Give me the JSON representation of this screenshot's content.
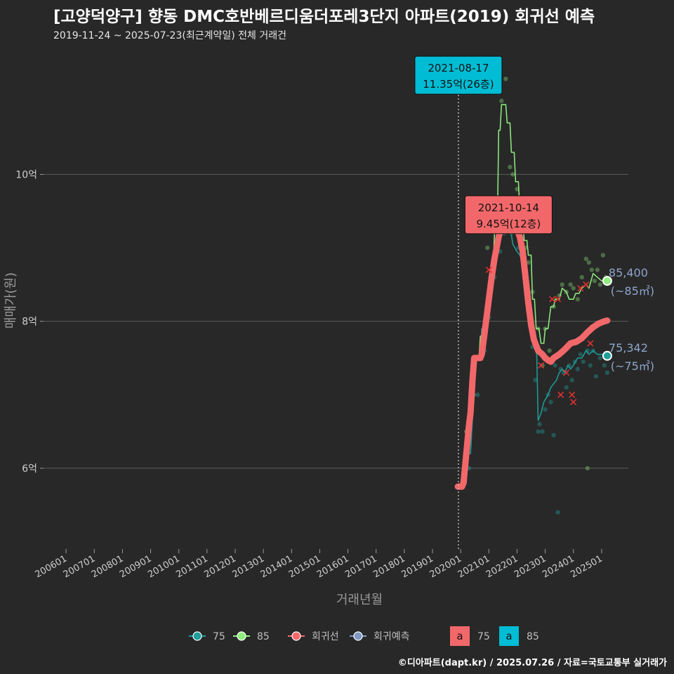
{
  "header": {
    "title": "[고양덕양구] 향동 DMC호반베르디움더포레3단지 아파트(2019) 회귀선 예측",
    "subtitle": "2019-11-24 ~ 2025-07-23(최근계약일) 전체 거래건"
  },
  "caption": "©디아파트(dapt.kr) / 2025.07.26 / 자료=국토교통부 실거래가",
  "chart_data": {
    "type": "line",
    "xlabel": "거래년월",
    "ylabel": "매매가(원)",
    "x_ticks": [
      "200601",
      "200701",
      "200801",
      "200901",
      "201001",
      "201101",
      "201201",
      "201301",
      "201401",
      "201501",
      "201601",
      "201701",
      "201801",
      "201901",
      "202001",
      "202101",
      "202201",
      "202301",
      "202401",
      "202501"
    ],
    "y_ticks": [
      {
        "value": 6,
        "label": "6억"
      },
      {
        "value": 8,
        "label": "8억"
      },
      {
        "value": 10,
        "label": "10억"
      }
    ],
    "ylim": [
      4.9,
      11.8
    ],
    "xlim": [
      2005.2,
      2025.95
    ],
    "grid": true,
    "legend_position": "bottom",
    "colors": {
      "75": "#1f9e9a",
      "85": "#90ee7e",
      "regression": "#f2686a",
      "forecast": "#7f99c0"
    },
    "series": [
      {
        "name": "85",
        "color": "#90ee7e",
        "values": [
          [
            2020.0,
            5.75
          ],
          [
            2020.08,
            5.75
          ],
          [
            2020.15,
            6.3
          ],
          [
            2020.25,
            6.3
          ],
          [
            2020.3,
            7.0
          ],
          [
            2020.45,
            7.0
          ],
          [
            2020.55,
            7.5
          ],
          [
            2020.65,
            7.5
          ],
          [
            2020.7,
            7.8
          ],
          [
            2020.85,
            7.8
          ],
          [
            2020.9,
            8.2
          ],
          [
            2021.0,
            8.2
          ],
          [
            2021.05,
            8.7
          ],
          [
            2021.15,
            8.7
          ],
          [
            2021.2,
            9.2
          ],
          [
            2021.3,
            9.2
          ],
          [
            2021.35,
            10.6
          ],
          [
            2021.4,
            10.6
          ],
          [
            2021.45,
            10.95
          ],
          [
            2021.6,
            10.95
          ],
          [
            2021.65,
            10.7
          ],
          [
            2021.75,
            10.7
          ],
          [
            2021.8,
            10.3
          ],
          [
            2021.9,
            10.3
          ],
          [
            2021.95,
            9.9
          ],
          [
            2022.05,
            9.9
          ],
          [
            2022.1,
            9.5
          ],
          [
            2022.2,
            9.5
          ],
          [
            2022.25,
            9.1
          ],
          [
            2022.35,
            9.1
          ],
          [
            2022.4,
            8.9
          ],
          [
            2022.5,
            8.9
          ],
          [
            2022.55,
            8.3
          ],
          [
            2022.62,
            8.3
          ],
          [
            2022.68,
            7.9
          ],
          [
            2022.78,
            7.9
          ],
          [
            2022.85,
            7.7
          ],
          [
            2022.95,
            7.7
          ],
          [
            2023.0,
            7.9
          ],
          [
            2023.1,
            7.9
          ],
          [
            2023.2,
            8.2
          ],
          [
            2023.3,
            8.2
          ],
          [
            2023.35,
            8.3
          ],
          [
            2023.5,
            8.3
          ],
          [
            2023.6,
            8.45
          ],
          [
            2023.75,
            8.4
          ],
          [
            2023.85,
            8.3
          ],
          [
            2024.0,
            8.3
          ],
          [
            2024.08,
            8.38
          ],
          [
            2024.2,
            8.38
          ],
          [
            2024.3,
            8.45
          ],
          [
            2024.45,
            8.5
          ],
          [
            2024.55,
            8.45
          ],
          [
            2024.7,
            8.65
          ],
          [
            2024.85,
            8.6
          ],
          [
            2025.0,
            8.55
          ],
          [
            2025.1,
            8.55
          ],
          [
            2025.2,
            8.55
          ]
        ]
      },
      {
        "name": "75",
        "color": "#1f9e9a",
        "values": [
          [
            2020.1,
            5.8
          ],
          [
            2020.2,
            5.8
          ],
          [
            2020.25,
            6.2
          ],
          [
            2020.35,
            6.2
          ],
          [
            2020.45,
            6.9
          ],
          [
            2020.55,
            7.5
          ],
          [
            2020.7,
            7.5
          ],
          [
            2020.75,
            7.9
          ],
          [
            2020.85,
            7.9
          ],
          [
            2020.95,
            8.3
          ],
          [
            2021.1,
            8.6
          ],
          [
            2021.25,
            8.9
          ],
          [
            2021.35,
            9.1
          ],
          [
            2021.45,
            9.25
          ],
          [
            2021.6,
            9.3
          ],
          [
            2021.75,
            9.3
          ],
          [
            2021.85,
            9.05
          ],
          [
            2022.0,
            8.95
          ],
          [
            2022.1,
            8.9
          ],
          [
            2022.2,
            8.8
          ],
          [
            2022.3,
            8.6
          ],
          [
            2022.4,
            8.3
          ],
          [
            2022.5,
            8.0
          ],
          [
            2022.6,
            7.7
          ],
          [
            2022.7,
            7.55
          ],
          [
            2022.75,
            6.65
          ],
          [
            2022.85,
            6.75
          ],
          [
            2022.95,
            6.9
          ],
          [
            2023.1,
            7.0
          ],
          [
            2023.2,
            7.1
          ],
          [
            2023.3,
            7.15
          ],
          [
            2023.4,
            7.2
          ],
          [
            2023.5,
            7.3
          ],
          [
            2023.6,
            7.35
          ],
          [
            2023.7,
            7.3
          ],
          [
            2023.8,
            7.4
          ],
          [
            2023.9,
            7.35
          ],
          [
            2024.0,
            7.4
          ],
          [
            2024.15,
            7.5
          ],
          [
            2024.3,
            7.5
          ],
          [
            2024.45,
            7.6
          ],
          [
            2024.55,
            7.55
          ],
          [
            2024.7,
            7.6
          ],
          [
            2024.85,
            7.55
          ],
          [
            2025.0,
            7.55
          ],
          [
            2025.1,
            7.55
          ],
          [
            2025.2,
            7.53
          ]
        ]
      },
      {
        "name": "회귀선",
        "color": "#f2686a",
        "values": [
          [
            2019.9,
            5.75
          ],
          [
            2019.95,
            5.75
          ],
          [
            2020.05,
            5.75
          ],
          [
            2020.1,
            5.8
          ],
          [
            2020.15,
            6.0
          ],
          [
            2020.2,
            6.2
          ],
          [
            2020.25,
            6.4
          ],
          [
            2020.3,
            6.6
          ],
          [
            2020.35,
            6.75
          ],
          [
            2020.42,
            7.2
          ],
          [
            2020.48,
            7.5
          ],
          [
            2020.55,
            7.5
          ],
          [
            2020.7,
            7.5
          ],
          [
            2020.75,
            7.55
          ],
          [
            2020.8,
            7.7
          ],
          [
            2020.9,
            8.0
          ],
          [
            2021.0,
            8.3
          ],
          [
            2021.1,
            8.6
          ],
          [
            2021.2,
            8.85
          ],
          [
            2021.35,
            9.15
          ],
          [
            2021.5,
            9.35
          ],
          [
            2021.65,
            9.5
          ],
          [
            2021.75,
            9.55
          ],
          [
            2021.82,
            9.45
          ],
          [
            2021.95,
            9.3
          ],
          [
            2022.1,
            9.15
          ],
          [
            2022.2,
            8.95
          ],
          [
            2022.3,
            8.6
          ],
          [
            2022.4,
            8.25
          ],
          [
            2022.5,
            7.95
          ],
          [
            2022.6,
            7.75
          ],
          [
            2022.75,
            7.6
          ],
          [
            2022.9,
            7.55
          ],
          [
            2023.0,
            7.5
          ],
          [
            2023.1,
            7.47
          ],
          [
            2023.2,
            7.45
          ],
          [
            2023.3,
            7.5
          ],
          [
            2023.5,
            7.55
          ],
          [
            2023.7,
            7.62
          ],
          [
            2023.9,
            7.7
          ],
          [
            2024.1,
            7.72
          ],
          [
            2024.3,
            7.77
          ],
          [
            2024.5,
            7.85
          ],
          [
            2024.7,
            7.92
          ],
          [
            2024.9,
            7.97
          ],
          [
            2025.1,
            8.0
          ],
          [
            2025.2,
            8.01
          ]
        ]
      }
    ],
    "scatter": {
      "75": [
        [
          2020.05,
          5.75
        ],
        [
          2020.3,
          6.0
        ],
        [
          2020.6,
          7.0
        ],
        [
          2020.85,
          7.6
        ],
        [
          2021.0,
          8.05
        ],
        [
          2021.2,
          8.6
        ],
        [
          2021.4,
          8.95
        ],
        [
          2021.55,
          9.2
        ],
        [
          2021.7,
          9.35
        ],
        [
          2021.8,
          9.2
        ],
        [
          2022.05,
          9.0
        ],
        [
          2022.2,
          8.85
        ],
        [
          2022.45,
          8.1
        ],
        [
          2022.55,
          7.65
        ],
        [
          2022.65,
          7.2
        ],
        [
          2022.75,
          6.5
        ],
        [
          2022.8,
          6.6
        ],
        [
          2022.9,
          6.5
        ],
        [
          2023.0,
          6.8
        ],
        [
          2023.1,
          7.0
        ],
        [
          2023.2,
          6.9
        ],
        [
          2023.3,
          6.45
        ],
        [
          2023.35,
          7.4
        ],
        [
          2023.45,
          5.4
        ],
        [
          2023.55,
          7.35
        ],
        [
          2023.65,
          7.3
        ],
        [
          2023.75,
          7.1
        ],
        [
          2023.85,
          7.4
        ],
        [
          2023.95,
          7.2
        ],
        [
          2024.05,
          7.45
        ],
        [
          2024.15,
          7.35
        ],
        [
          2024.25,
          7.55
        ],
        [
          2024.35,
          7.45
        ],
        [
          2024.5,
          7.6
        ],
        [
          2024.6,
          7.4
        ],
        [
          2024.7,
          7.6
        ],
        [
          2024.8,
          7.25
        ],
        [
          2024.95,
          7.5
        ],
        [
          2025.1,
          7.4
        ],
        [
          2025.2,
          7.3
        ]
      ],
      "85": [
        [
          2020.2,
          6.5
        ],
        [
          2020.45,
          7.0
        ],
        [
          2020.7,
          7.5
        ],
        [
          2020.95,
          9.0
        ],
        [
          2021.1,
          8.7
        ],
        [
          2021.3,
          9.3
        ],
        [
          2021.45,
          11.0
        ],
        [
          2021.6,
          11.3
        ],
        [
          2021.75,
          10.1
        ],
        [
          2021.85,
          10.0
        ],
        [
          2022.0,
          9.8
        ],
        [
          2022.1,
          9.6
        ],
        [
          2022.3,
          9.0
        ],
        [
          2022.4,
          8.8
        ],
        [
          2022.55,
          8.4
        ],
        [
          2022.75,
          7.9
        ],
        [
          2022.9,
          7.4
        ],
        [
          2023.0,
          7.9
        ],
        [
          2023.15,
          7.6
        ],
        [
          2023.3,
          8.2
        ],
        [
          2023.5,
          8.35
        ],
        [
          2023.6,
          8.5
        ],
        [
          2023.75,
          8.4
        ],
        [
          2023.9,
          8.5
        ],
        [
          2024.0,
          8.45
        ],
        [
          2024.15,
          8.3
        ],
        [
          2024.3,
          8.6
        ],
        [
          2024.45,
          8.85
        ],
        [
          2024.55,
          8.8
        ],
        [
          2024.65,
          8.7
        ],
        [
          2024.75,
          8.55
        ],
        [
          2024.85,
          8.7
        ],
        [
          2024.95,
          8.5
        ],
        [
          2025.05,
          8.9
        ],
        [
          2025.15,
          8.6
        ],
        [
          2024.5,
          6.0
        ]
      ],
      "regression_marks": [
        [
          2021.0,
          8.7
        ],
        [
          2022.85,
          7.4
        ],
        [
          2023.25,
          8.3
        ],
        [
          2023.45,
          8.3
        ],
        [
          2023.55,
          7.0
        ],
        [
          2023.75,
          7.3
        ],
        [
          2023.95,
          7.0
        ],
        [
          2024.0,
          6.9
        ],
        [
          2024.25,
          8.45
        ],
        [
          2024.45,
          8.5
        ],
        [
          2024.6,
          7.7
        ]
      ]
    },
    "highlight_lines": [
      {
        "x": 2019.92,
        "style": "dotted"
      }
    ],
    "annotations": [
      {
        "date": "2021-08-17",
        "price": "11.35억(26층)",
        "x": 2019.92,
        "y": 11.35,
        "color": "#00bcd4"
      },
      {
        "date": "2021-10-14",
        "price": "9.45억(12층)",
        "x": 2021.7,
        "y": 9.45,
        "color": "#f2686a"
      }
    ],
    "end_labels": [
      {
        "series": "85",
        "value": "85,400",
        "unit": "(~85㎡)",
        "x": 2025.2,
        "y": 8.55
      },
      {
        "series": "75",
        "value": "75,342",
        "unit": "(~75㎡)",
        "x": 2025.2,
        "y": 7.53
      }
    ],
    "legend": {
      "items": [
        {
          "name": "75",
          "color": "#1f9e9a"
        },
        {
          "name": "85",
          "color": "#90ee7e"
        },
        {
          "name": "회귀선",
          "color": "#f2686a"
        },
        {
          "name": "회귀예측",
          "color": "#7f99c0"
        }
      ],
      "label_keys": [
        {
          "glyph": "a",
          "name": "75",
          "color": "#f2686a"
        },
        {
          "glyph": "a",
          "name": "85",
          "color": "#00bcd4"
        }
      ]
    }
  }
}
